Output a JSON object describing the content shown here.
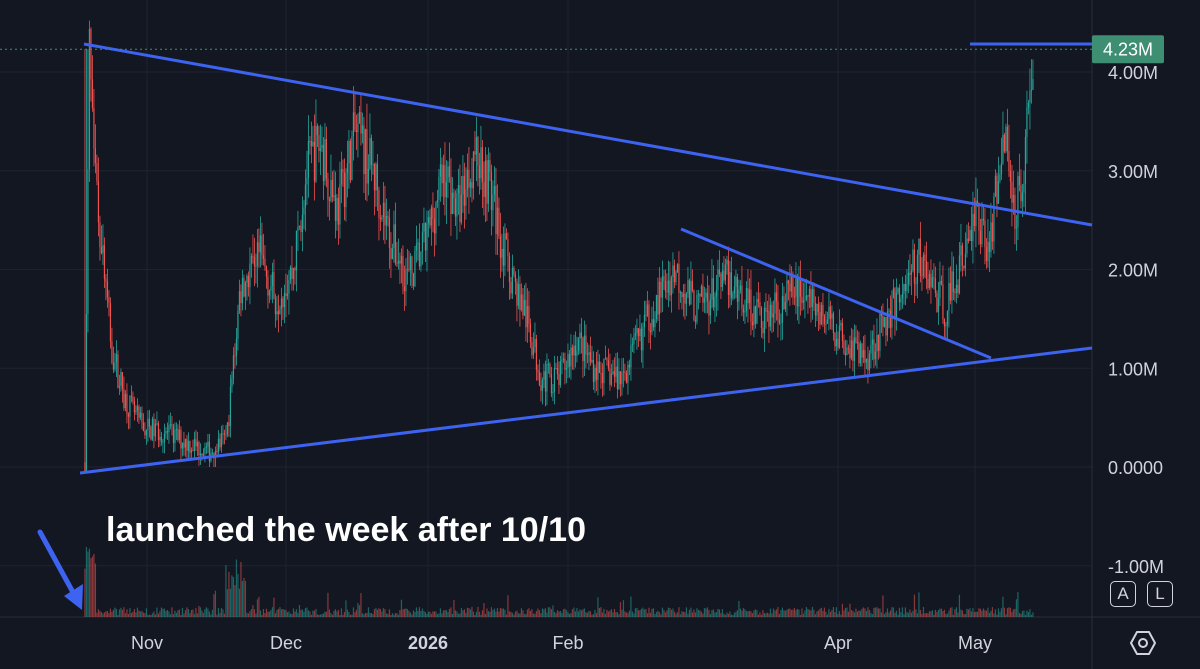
{
  "chart_data": {
    "type": "candlestick",
    "y_axis": {
      "ticks": [
        "4.00M",
        "3.00M",
        "2.00M",
        "1.00M",
        "0.0000",
        "-1.00M"
      ],
      "tick_values": [
        4000000,
        3000000,
        2000000,
        1000000,
        0,
        -1000000
      ],
      "range": [
        -1300000,
        4400000
      ]
    },
    "x_axis": {
      "ticks": [
        "Nov",
        "Dec",
        "2026",
        "Feb",
        "Apr",
        "May"
      ],
      "bold": [
        "2026"
      ]
    },
    "last_price_label": "4.23M",
    "last_price_value": 4230000,
    "series_shape": [
      [
        "2025-10-18",
        0.05
      ],
      [
        "2025-10-19",
        4.23
      ],
      [
        "2025-10-20",
        3.0
      ],
      [
        "2025-10-22",
        2.2
      ],
      [
        "2025-10-24",
        1.2
      ],
      [
        "2025-10-27",
        0.7
      ],
      [
        "2025-10-31",
        0.4
      ],
      [
        "2025-11-05",
        0.35
      ],
      [
        "2025-11-10",
        0.25
      ],
      [
        "2025-11-15",
        0.15
      ],
      [
        "2025-11-19",
        0.3
      ],
      [
        "2025-11-22",
        1.8
      ],
      [
        "2025-11-26",
        2.2
      ],
      [
        "2025-11-30",
        1.7
      ],
      [
        "2025-12-04",
        2.0
      ],
      [
        "2025-12-07",
        3.0
      ],
      [
        "2025-12-10",
        3.3
      ],
      [
        "2025-12-14",
        2.6
      ],
      [
        "2025-12-18",
        3.4
      ],
      [
        "2025-12-22",
        3.0
      ],
      [
        "2025-12-26",
        2.3
      ],
      [
        "2025-12-30",
        1.9
      ],
      [
        "2026-01-03",
        2.3
      ],
      [
        "2026-01-07",
        3.0
      ],
      [
        "2026-01-10",
        2.6
      ],
      [
        "2026-01-14",
        3.2
      ],
      [
        "2026-01-17",
        2.9
      ],
      [
        "2026-01-21",
        2.1
      ],
      [
        "2026-01-25",
        1.6
      ],
      [
        "2026-01-29",
        0.9
      ],
      [
        "2026-02-02",
        0.9
      ],
      [
        "2026-02-06",
        1.3
      ],
      [
        "2026-02-10",
        1.0
      ],
      [
        "2026-02-16",
        0.9
      ],
      [
        "2026-02-22",
        1.5
      ],
      [
        "2026-02-28",
        2.0
      ],
      [
        "2026-03-05",
        1.6
      ],
      [
        "2026-03-12",
        1.9
      ],
      [
        "2026-03-20",
        1.5
      ],
      [
        "2026-03-28",
        1.8
      ],
      [
        "2026-04-05",
        1.4
      ],
      [
        "2026-04-12",
        1.1
      ],
      [
        "2026-04-18",
        1.6
      ],
      [
        "2026-04-24",
        2.1
      ],
      [
        "2026-04-30",
        1.6
      ],
      [
        "2026-05-04",
        2.1
      ],
      [
        "2026-05-07",
        2.6
      ],
      [
        "2026-05-10",
        2.2
      ],
      [
        "2026-05-13",
        3.4
      ],
      [
        "2026-05-16",
        2.6
      ],
      [
        "2026-05-18",
        3.2
      ],
      [
        "2026-05-20",
        4.23
      ]
    ],
    "series_shape_unit": "millions",
    "colors": {
      "up": "#26a69a",
      "down": "#ef5350",
      "trendline": "#3d63f0",
      "background": "#131722",
      "grid": "#1f2331",
      "label_bg": "#3e8e74"
    },
    "annotation": "launched the week after 10/10",
    "grid": true
  },
  "controls": {
    "auto_label": "A",
    "log_label": "L",
    "settings_icon": "settings-hexagon-icon"
  }
}
